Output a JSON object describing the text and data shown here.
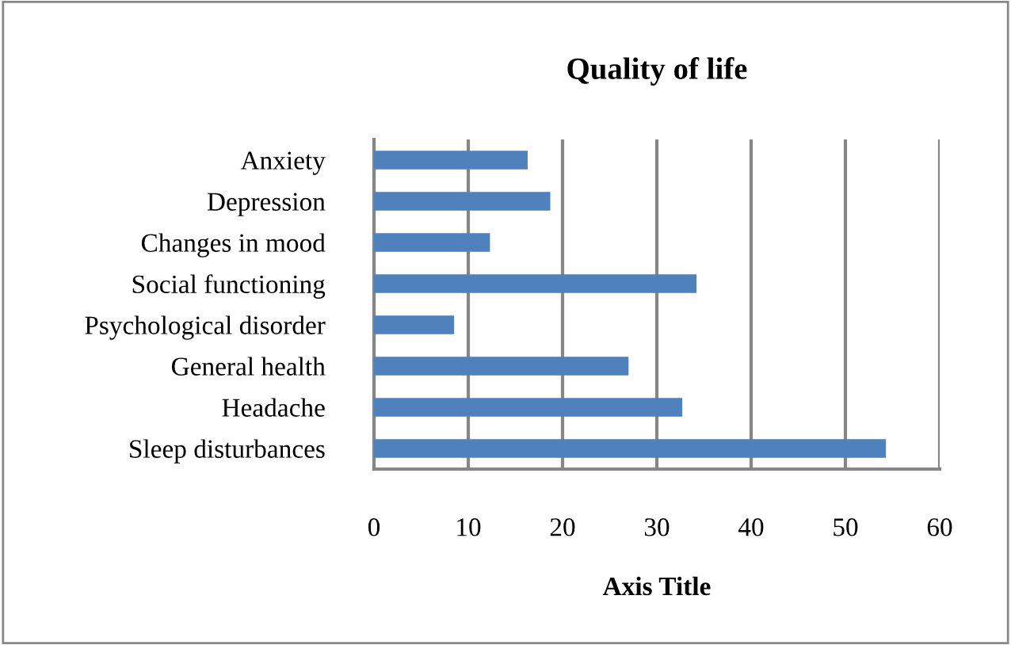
{
  "chart_data": {
    "type": "bar",
    "orientation": "horizontal",
    "title": "Quality of life",
    "xlabel": "Axis Title",
    "categories": [
      "Anxiety",
      "Depression",
      "Changes in mood",
      "Social functioning",
      "Psychological disorder",
      "General health",
      "Headache",
      "Sleep disturbances"
    ],
    "values": [
      16.3,
      18.7,
      12.3,
      34.2,
      8.5,
      27.0,
      32.7,
      54.3
    ],
    "color": "#4f81bd",
    "xlim": [
      0,
      60
    ],
    "xticks": [
      0,
      10,
      20,
      30,
      40,
      50,
      60
    ],
    "grid": "x",
    "legend": false
  }
}
